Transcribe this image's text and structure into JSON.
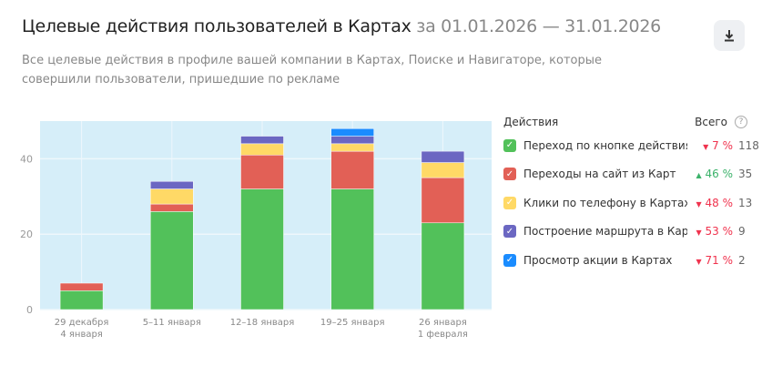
{
  "header": {
    "title": "Целевые действия пользователей в Картах",
    "period": "за 01.01.2026 — 31.01.2026",
    "subtitle": "Все целевые действия в профиле вашей компании в Картах, Поиске и Навигаторе, которые совершили пользователи, пришедшие по рекламе",
    "download_icon": "download-icon"
  },
  "legend": {
    "actions_header": "Действия",
    "total_header": "Всего",
    "help_icon": "?",
    "items": [
      {
        "label": "Переход по кнопке действия из Карт",
        "change": "7 %",
        "direction": "down",
        "total": "118",
        "color": "#52c15a"
      },
      {
        "label": "Переходы на сайт из Карт",
        "change": "46 %",
        "direction": "up",
        "total": "35",
        "color": "#e26056"
      },
      {
        "label": "Клики по телефону в Картах",
        "change": "48 %",
        "direction": "down",
        "total": "13",
        "color": "#ffd966"
      },
      {
        "label": "Построение маршрута в Картах",
        "change": "53 %",
        "direction": "down",
        "total": "9",
        "color": "#6b67c2"
      },
      {
        "label": "Просмотр акции в Картах",
        "change": "71 %",
        "direction": "down",
        "total": "2",
        "color": "#1a8cff"
      }
    ]
  },
  "chart_data": {
    "type": "bar",
    "stacked": true,
    "categories": [
      [
        "29 декабря",
        "4 января"
      ],
      [
        "5–11 января"
      ],
      [
        "12–18 января"
      ],
      [
        "19–25 января"
      ],
      [
        "26 января",
        "1 февраля"
      ]
    ],
    "series": [
      {
        "name": "Переход по кнопке действия из Карт",
        "color": "#52c15a",
        "values": [
          5,
          26,
          32,
          32,
          23
        ]
      },
      {
        "name": "Переходы на сайт из Карт",
        "color": "#e26056",
        "values": [
          2,
          2,
          9,
          10,
          12
        ]
      },
      {
        "name": "Клики по телефону в Картах",
        "color": "#ffd966",
        "values": [
          0,
          4,
          3,
          2,
          4
        ]
      },
      {
        "name": "Построение маршрута в Картах",
        "color": "#6b67c2",
        "values": [
          0,
          2,
          2,
          2,
          3
        ]
      },
      {
        "name": "Просмотр акции в Картах",
        "color": "#1a8cff",
        "values": [
          0,
          0,
          0,
          2,
          0
        ]
      }
    ],
    "yticks": [
      "0",
      "20",
      "40"
    ],
    "ylim": [
      0,
      50
    ],
    "grid": true
  }
}
